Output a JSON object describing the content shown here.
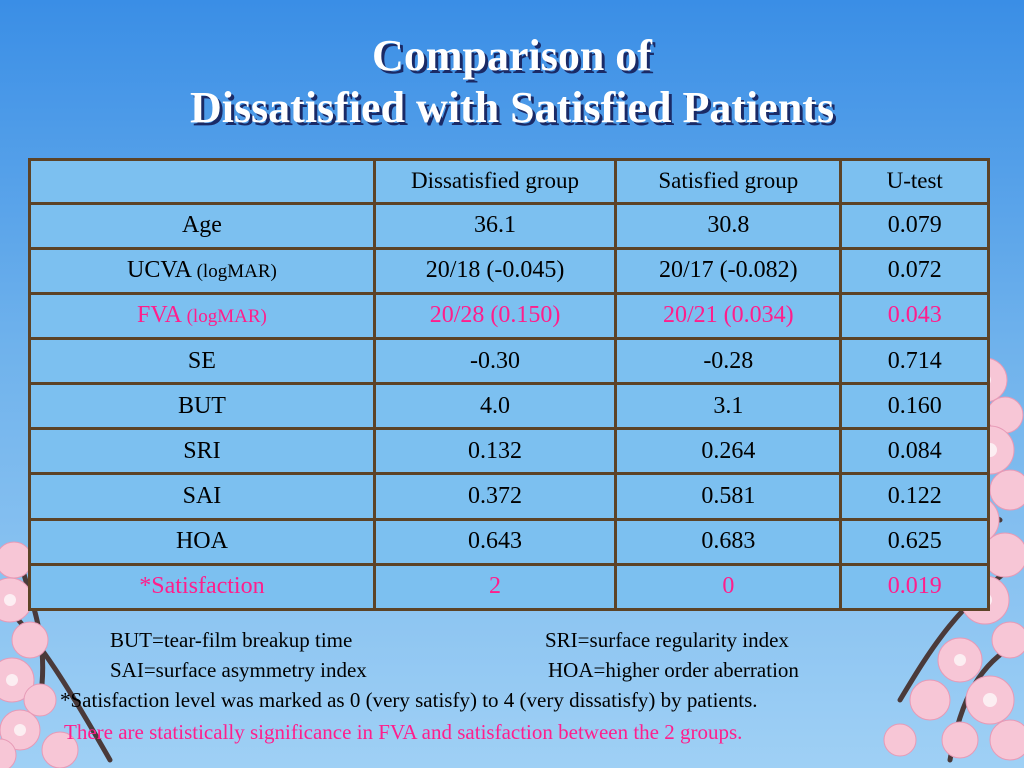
{
  "title": {
    "line1": "Comparison of",
    "line2": "Dissatisfied with Satisfied Patients"
  },
  "table": {
    "headers": [
      "",
      "Dissatisfied group",
      "Satisfied group",
      "U-test"
    ],
    "rows": [
      {
        "label": "Age",
        "unit": "",
        "dissatisfied": "36.1",
        "satisfied": "30.8",
        "u_test": "0.079",
        "significant": false
      },
      {
        "label": "UCVA ",
        "unit": "(logMAR)",
        "dissatisfied": "20/18 (-0.045)",
        "satisfied": "20/17 (-0.082)",
        "u_test": "0.072",
        "significant": false
      },
      {
        "label": "FVA ",
        "unit": "(logMAR)",
        "dissatisfied": "20/28 (0.150)",
        "satisfied": "20/21 (0.034)",
        "u_test": "0.043",
        "significant": true
      },
      {
        "label": "SE",
        "unit": "",
        "dissatisfied": "-0.30",
        "satisfied": "-0.28",
        "u_test": "0.714",
        "significant": false
      },
      {
        "label": "BUT",
        "unit": "",
        "dissatisfied": "4.0",
        "satisfied": "3.1",
        "u_test": "0.160",
        "significant": false
      },
      {
        "label": "SRI",
        "unit": "",
        "dissatisfied": "0.132",
        "satisfied": "0.264",
        "u_test": "0.084",
        "significant": false
      },
      {
        "label": "SAI",
        "unit": "",
        "dissatisfied": "0.372",
        "satisfied": "0.581",
        "u_test": "0.122",
        "significant": false
      },
      {
        "label": "HOA",
        "unit": "",
        "dissatisfied": "0.643",
        "satisfied": "0.683",
        "u_test": "0.625",
        "significant": false
      },
      {
        "label": "*Satisfaction",
        "unit": "",
        "dissatisfied": "2",
        "satisfied": "0",
        "u_test": "0.019",
        "significant": true
      }
    ]
  },
  "notes": {
    "but": "BUT=tear-film breakup time",
    "sri": "SRI=surface regularity index",
    "sai": "SAI=surface asymmetry index",
    "hoa": "HOA=higher order aberration",
    "satisfaction": "*Satisfaction level was marked as 0 (very satisfy) to 4 (very dissatisfy) by patients.",
    "conclusion": "There are statistically significance in FVA and satisfaction between the 2 groups."
  },
  "colors": {
    "significant": "#ff1e8c",
    "border": "#5c4327",
    "table_fill": "#7cc0f0",
    "blossom": "#f7c6d6"
  }
}
